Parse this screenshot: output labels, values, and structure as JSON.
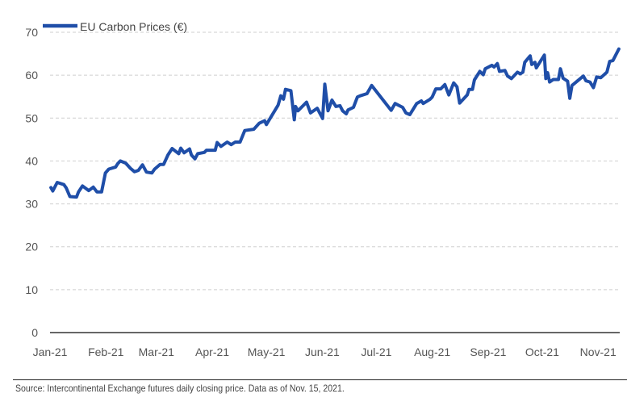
{
  "chart_data": {
    "type": "line",
    "title": "",
    "xlabel": "",
    "ylabel": "",
    "x_units": "days since 2021-01-01",
    "xlim": [
      0,
      316
    ],
    "ylim": [
      0,
      70
    ],
    "yticks": [
      0,
      10,
      20,
      30,
      40,
      50,
      60,
      70
    ],
    "xticks": [
      {
        "day": 0,
        "label": "Jan-21"
      },
      {
        "day": 31,
        "label": "Feb-21"
      },
      {
        "day": 59,
        "label": "Mar-21"
      },
      {
        "day": 90,
        "label": "Apr-21"
      },
      {
        "day": 120,
        "label": "May-21"
      },
      {
        "day": 151,
        "label": "Jun-21"
      },
      {
        "day": 181,
        "label": "Jul-21"
      },
      {
        "day": 212,
        "label": "Aug-21"
      },
      {
        "day": 243,
        "label": "Sep-21"
      },
      {
        "day": 273,
        "label": "Oct-21"
      },
      {
        "day": 304,
        "label": "Nov-21"
      }
    ],
    "grid": true,
    "legend_position": "top-left",
    "series": [
      {
        "name": "EU Carbon Prices (€)",
        "color": "#1f4ea8",
        "x": [
          0.5,
          1.5,
          4,
          7.7,
          9,
          11,
          14.7,
          15.8,
          18,
          21.5,
          24,
          26,
          28.6,
          30.7,
          32.6,
          36.4,
          37.6,
          39,
          42,
          44.6,
          46.8,
          49,
          51.3,
          53.5,
          56.5,
          58,
          61,
          63,
          65.4,
          67.7,
          71.4,
          72.5,
          74.4,
          77.4,
          78.4,
          80.4,
          81.9,
          85.6,
          86.8,
          91.6,
          92.7,
          94.8,
          98.3,
          100.5,
          102.7,
          105.4,
          108,
          113,
          116,
          119,
          120,
          126.5,
          128,
          129.5,
          130.6,
          133.6,
          135.5,
          136.2,
          137.5,
          142.3,
          144.5,
          148.2,
          151.2,
          152.4,
          154.2,
          156.4,
          158.6,
          160.8,
          162.3,
          164.3,
          165.3,
          168.3,
          170.5,
          172,
          175.8,
          178.4,
          189.2,
          191.4,
          195.6,
          197.4,
          199.6,
          203.4,
          206,
          207,
          210.8,
          212,
          214,
          216.7,
          219,
          221.2,
          223.9,
          225.7,
          227.2,
          231.4,
          232.4,
          234.3,
          235.4,
          238.4,
          240.3,
          241.4,
          245.1,
          246.3,
          248.1,
          249.3,
          252.3,
          253.8,
          255.9,
          259.3,
          260.8,
          262.3,
          263.3,
          266.3,
          267.2,
          269,
          269.7,
          274.2,
          275,
          276,
          277.1,
          279.1,
          282,
          283.1,
          284.6,
          287.1,
          288.3,
          289.5,
          295.8,
          297.3,
          299.5,
          301.4,
          303.2,
          305.5,
          308.9,
          310.4,
          312.2,
          315.5
        ],
        "values": [
          33.8,
          33,
          35,
          34.5,
          33.7,
          31.7,
          31.6,
          32.8,
          34.2,
          33.1,
          33.9,
          32.8,
          32.8,
          37.2,
          38.1,
          38.6,
          39.4,
          40,
          39.5,
          38.3,
          37.5,
          37.8,
          39.1,
          37.4,
          37.2,
          38.1,
          39.2,
          39.2,
          41.4,
          42.9,
          41.7,
          43,
          41.9,
          42.8,
          41.4,
          40.5,
          41.7,
          42,
          42.5,
          42.5,
          44.3,
          43.4,
          44.4,
          43.8,
          44.4,
          44.4,
          47.1,
          47.4,
          48.8,
          49.4,
          48.5,
          53,
          55.2,
          54.4,
          56.7,
          56.4,
          49.6,
          52.7,
          51.7,
          53.7,
          51.2,
          52.3,
          49.9,
          57.9,
          51.7,
          54.2,
          52.7,
          52.9,
          51.7,
          51,
          51.9,
          52.5,
          54.9,
          55.2,
          55.7,
          57.6,
          51.8,
          53.4,
          52.5,
          51.2,
          50.8,
          53.4,
          54,
          53.4,
          54.4,
          54.9,
          56.8,
          56.8,
          57.8,
          55.4,
          58.2,
          57.3,
          53.5,
          55.4,
          56.7,
          56.7,
          58.9,
          60.9,
          60.1,
          61.5,
          62.3,
          61.9,
          62.7,
          60.9,
          61.1,
          59.8,
          59.2,
          60.7,
          60.3,
          60.7,
          63,
          64.5,
          62.5,
          63,
          61.7,
          64.7,
          59.2,
          60.6,
          58.4,
          59,
          59,
          61.5,
          59.3,
          58.6,
          54.6,
          57.6,
          59.8,
          58.7,
          58.4,
          57.1,
          59.6,
          59.4,
          60.7,
          63.2,
          63.4,
          66.1
        ]
      }
    ]
  },
  "footer": {
    "source": "Source: Intercontinental Exchange futures daily closing price. Data as of Nov. 15, 2021."
  }
}
